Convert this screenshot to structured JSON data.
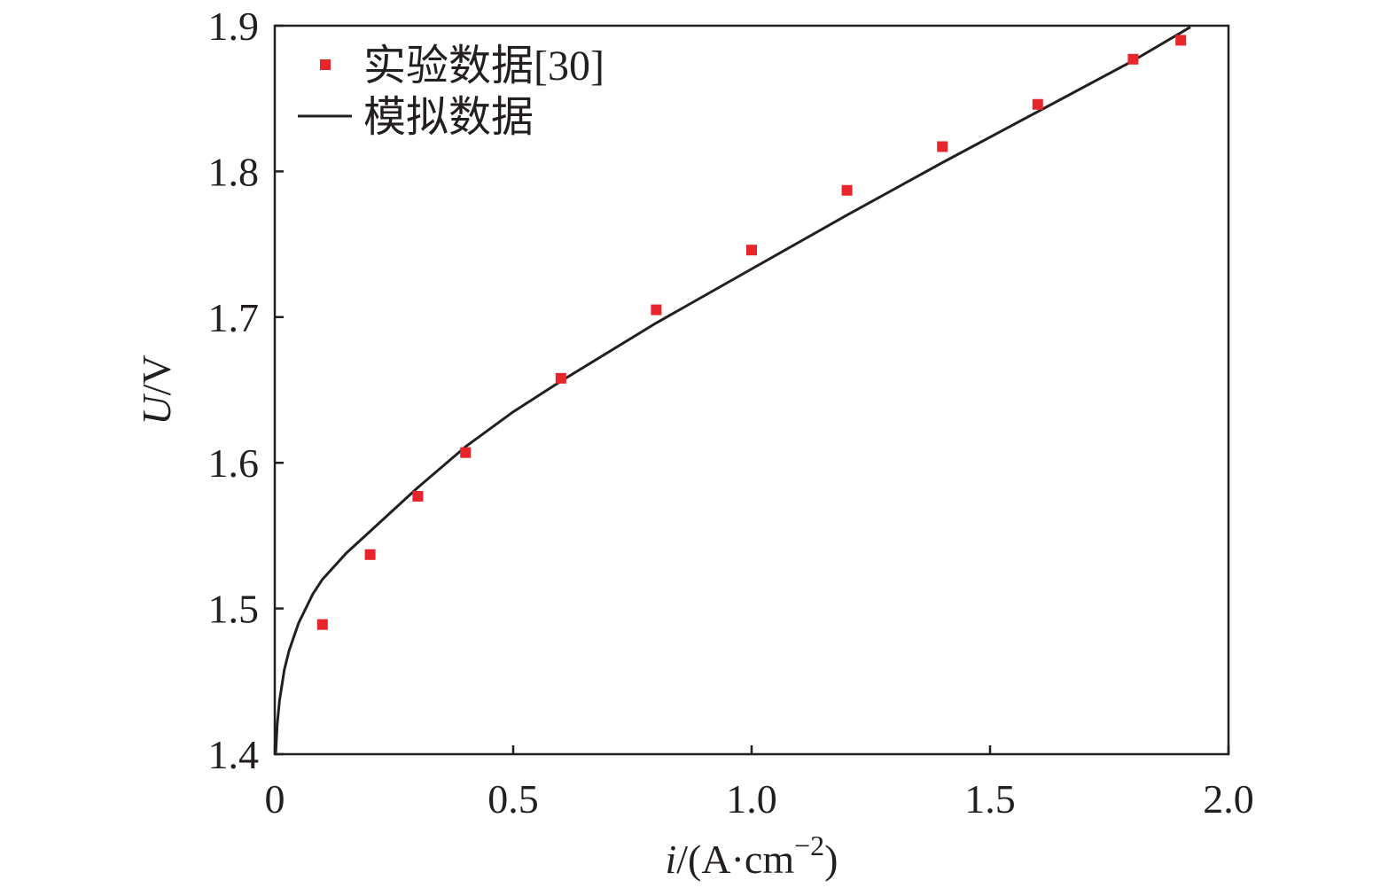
{
  "chart_data": {
    "type": "scatter",
    "x_axis": {
      "label_var": "i",
      "label_unit_open": "/(A·cm",
      "label_exp": "−2",
      "label_unit_close": ")",
      "range": [
        0,
        2.0
      ],
      "ticks": [
        0,
        0.5,
        1.0,
        1.5,
        2.0
      ],
      "tick_labels": [
        "0",
        "0.5",
        "1.0",
        "1.5",
        "2.0"
      ]
    },
    "y_axis": {
      "label_var": "U",
      "label_unit": "/V",
      "range": [
        1.4,
        1.9
      ],
      "ticks": [
        1.4,
        1.5,
        1.6,
        1.7,
        1.8,
        1.9
      ],
      "tick_labels": [
        "1.4",
        "1.5",
        "1.6",
        "1.7",
        "1.8",
        "1.9"
      ]
    },
    "grid": false,
    "legend_position": "top-left",
    "series": [
      {
        "name": "实验数据[30]",
        "kind": "markers",
        "marker": "square",
        "color": "#e8252a",
        "x": [
          0.1,
          0.2,
          0.3,
          0.4,
          0.6,
          0.8,
          1.0,
          1.2,
          1.4,
          1.6,
          1.8,
          1.9
        ],
        "y": [
          1.489,
          1.537,
          1.577,
          1.607,
          1.658,
          1.705,
          1.746,
          1.787,
          1.817,
          1.846,
          1.877,
          1.89
        ]
      },
      {
        "name": "模拟数据",
        "kind": "line",
        "color": "#231f20",
        "x": [
          0.002,
          0.005,
          0.01,
          0.02,
          0.03,
          0.05,
          0.08,
          0.1,
          0.15,
          0.2,
          0.3,
          0.4,
          0.5,
          0.6,
          0.8,
          1.0,
          1.2,
          1.4,
          1.6,
          1.8,
          1.92
        ],
        "y": [
          1.401,
          1.42,
          1.437,
          1.458,
          1.471,
          1.49,
          1.51,
          1.52,
          1.538,
          1.553,
          1.583,
          1.611,
          1.635,
          1.656,
          1.696,
          1.733,
          1.77,
          1.806,
          1.841,
          1.876,
          1.899
        ]
      }
    ]
  }
}
